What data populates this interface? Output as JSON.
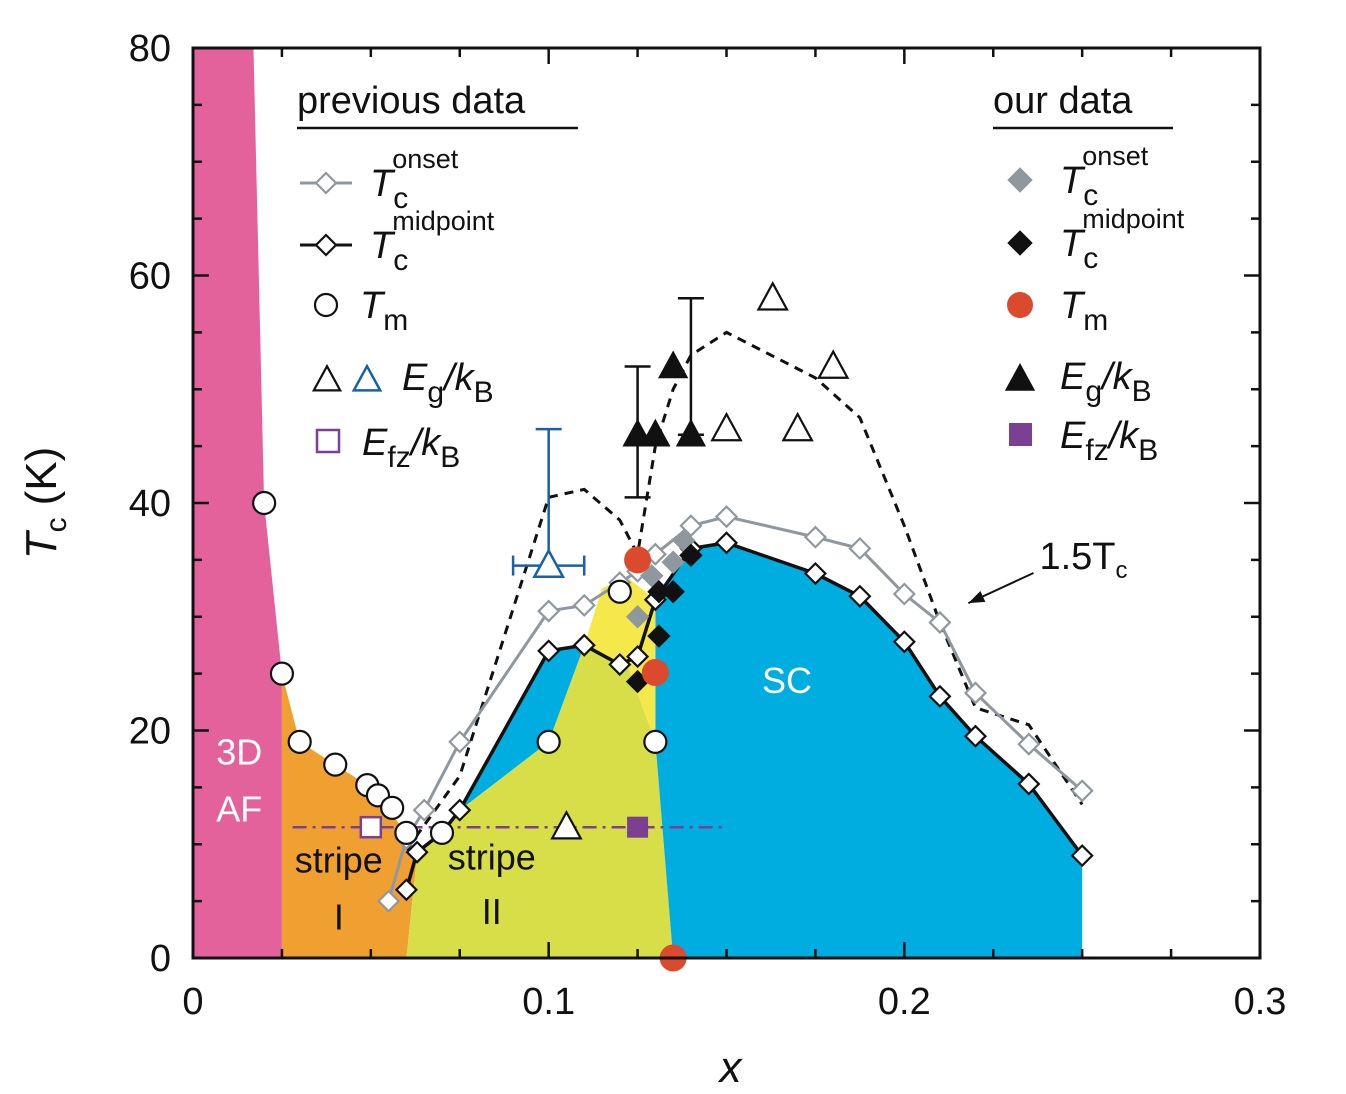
{
  "chart_data": {
    "type": "scatter",
    "xlabel": "x",
    "ylabel": "T",
    "ylabel_sub": "c",
    "ylabel_unit": "(K)",
    "xlim": [
      0,
      0.3
    ],
    "ylim": [
      0,
      80
    ],
    "xticks": [
      0,
      0.1,
      0.2,
      0.3
    ],
    "xtick_labels": [
      "0",
      "0.1",
      "0.2",
      "0.3"
    ],
    "yticks": [
      0,
      20,
      40,
      60,
      80
    ],
    "ytick_labels": [
      "0",
      "20",
      "40",
      "60",
      "80"
    ],
    "colors": {
      "af": "#e4629b",
      "stripe1": "#f0a030",
      "stripe2": "#d8de48",
      "stripe2b": "#f5e84a",
      "sc": "#00ade0",
      "onset_line": "#8f989e",
      "midpoint_line": "#111111",
      "tm_red": "#dc4a2e",
      "efz_purple": "#7b3f94",
      "eg_blue": "#1a60a8"
    },
    "regions": {
      "af": [
        [
          0,
          80
        ],
        [
          0.017,
          80
        ],
        [
          0.02,
          40
        ],
        [
          0.025,
          25
        ],
        [
          0.025,
          0
        ],
        [
          0,
          0
        ]
      ],
      "stripe1": [
        [
          0.025,
          25
        ],
        [
          0.03,
          19
        ],
        [
          0.04,
          17
        ],
        [
          0.05,
          15
        ],
        [
          0.055,
          13
        ],
        [
          0.06,
          11
        ],
        [
          0.063,
          9
        ],
        [
          0.06,
          0
        ],
        [
          0.025,
          0
        ]
      ],
      "stripe2": [
        [
          0.06,
          0
        ],
        [
          0.063,
          9
        ],
        [
          0.07,
          11
        ],
        [
          0.075,
          13
        ],
        [
          0.1,
          19
        ],
        [
          0.11,
          27.5
        ],
        [
          0.122,
          25.8
        ],
        [
          0.13,
          19
        ],
        [
          0.135,
          0
        ]
      ],
      "stripe2b": [
        [
          0.11,
          27.5
        ],
        [
          0.115,
          32.5
        ],
        [
          0.122,
          33.5
        ],
        [
          0.13,
          31.5
        ],
        [
          0.13,
          19
        ],
        [
          0.122,
          25.8
        ]
      ],
      "sc": [
        [
          0.075,
          13
        ],
        [
          0.1,
          27
        ],
        [
          0.11,
          27.5
        ],
        [
          0.122,
          25.8
        ],
        [
          0.13,
          19
        ],
        [
          0.13,
          31.5
        ],
        [
          0.14,
          36
        ],
        [
          0.15,
          36.5
        ],
        [
          0.175,
          33.8
        ],
        [
          0.1875,
          31.8
        ],
        [
          0.2,
          27.8
        ],
        [
          0.21,
          23
        ],
        [
          0.22,
          19.5
        ],
        [
          0.235,
          15.3
        ],
        [
          0.25,
          9
        ],
        [
          0.25,
          0
        ],
        [
          0.135,
          0
        ],
        [
          0.13,
          19
        ],
        [
          0.122,
          25.8
        ],
        [
          0.11,
          27.5
        ],
        [
          0.1,
          19
        ]
      ]
    },
    "region_labels": [
      {
        "text": "3D",
        "x": 0.013,
        "y": 17.0,
        "color": "#ffffff"
      },
      {
        "text": "AF",
        "x": 0.013,
        "y": 12.0,
        "color": "#ffffff"
      },
      {
        "text": "stripe",
        "x": 0.041,
        "y": 7.5,
        "color": "#111111"
      },
      {
        "text": "I",
        "x": 0.041,
        "y": 2.5,
        "color": "#111111"
      },
      {
        "text": "stripe",
        "x": 0.084,
        "y": 7.8,
        "color": "#111111"
      },
      {
        "text": "II",
        "x": 0.084,
        "y": 3.0,
        "color": "#111111"
      },
      {
        "text": "SC",
        "x": 0.167,
        "y": 23.3,
        "color": "#ffffff"
      }
    ],
    "series": [
      {
        "name": "previous Tc onset",
        "style": "open-diamond-gray-line",
        "x": [
          0.055,
          0.06,
          0.065,
          0.075,
          0.1,
          0.11,
          0.12,
          0.125,
          0.13,
          0.14,
          0.15,
          0.175,
          0.1875,
          0.2,
          0.21,
          0.22,
          0.235,
          0.25
        ],
        "y": [
          5,
          10.5,
          13,
          19,
          30.5,
          31,
          33,
          34,
          35.5,
          38,
          38.8,
          37,
          36,
          32,
          29.5,
          23.3,
          18.8,
          14.7
        ]
      },
      {
        "name": "previous Tc midpoint",
        "style": "open-diamond-black-line",
        "x": [
          0.06,
          0.063,
          0.07,
          0.075,
          0.1,
          0.11,
          0.12,
          0.125,
          0.13,
          0.14,
          0.15,
          0.175,
          0.1875,
          0.2,
          0.21,
          0.22,
          0.235,
          0.25
        ],
        "y": [
          6,
          9.3,
          11,
          13,
          27,
          27.5,
          25.8,
          26.5,
          31.5,
          36,
          36.5,
          33.8,
          31.8,
          27.8,
          23,
          19.5,
          15.3,
          9
        ]
      },
      {
        "name": "previous Tm",
        "style": "open-circle",
        "x": [
          0.02,
          0.025,
          0.03,
          0.04,
          0.049,
          0.052,
          0.056,
          0.06,
          0.07,
          0.1,
          0.12,
          0.13
        ],
        "y": [
          40,
          25,
          19,
          17,
          15.2,
          14.3,
          13.2,
          11,
          11,
          19,
          32.2,
          19
        ]
      },
      {
        "name": "previous Eg/kB",
        "style": "open-triangle",
        "x": [
          0.105,
          0.15,
          0.163,
          0.17,
          0.18
        ],
        "y": [
          11.5,
          46.5,
          58,
          46.5,
          52
        ]
      },
      {
        "name": "previous Eg/kB blue",
        "style": "open-triangle-blue",
        "x": [
          0.1
        ],
        "y": [
          34.5
        ],
        "xerr": [
          0.01
        ],
        "yerr_up": [
          12
        ]
      },
      {
        "name": "previous Efz/kB",
        "style": "open-square-purple",
        "x": [
          0.05
        ],
        "y": [
          11.5
        ]
      },
      {
        "name": "our Tc onset",
        "style": "filled-diamond-gray",
        "x": [
          0.125,
          0.129,
          0.135,
          0.138
        ],
        "y": [
          30,
          33.6,
          34.8,
          36.7
        ]
      },
      {
        "name": "our Tc midpoint",
        "style": "filled-diamond-black",
        "x": [
          0.125,
          0.131,
          0.131,
          0.135,
          0.14
        ],
        "y": [
          24.3,
          28.3,
          32.2,
          32.2,
          35.4
        ]
      },
      {
        "name": "our Tm",
        "style": "filled-circle-red",
        "x": [
          0.125,
          0.13,
          0.135
        ],
        "y": [
          35,
          25.1,
          0
        ]
      },
      {
        "name": "our Eg/kB",
        "style": "filled-triangle-black",
        "x": [
          0.125,
          0.13,
          0.135,
          0.14
        ],
        "y": [
          46,
          46,
          52,
          46
        ],
        "err_pairs": [
          [
            0.125,
            40.5,
            52
          ],
          [
            0.14,
            46,
            58
          ]
        ]
      },
      {
        "name": "our Efz/kB",
        "style": "filled-square-purple",
        "x": [
          0.125
        ],
        "y": [
          11.5
        ]
      },
      {
        "name": "1.5Tc",
        "style": "dashed-line",
        "x": [
          0.06,
          0.075,
          0.1,
          0.11,
          0.12,
          0.125,
          0.13,
          0.135,
          0.14,
          0.15,
          0.175,
          0.1875,
          0.2,
          0.21,
          0.22,
          0.235,
          0.25
        ],
        "y": [
          9.5,
          16,
          40.5,
          41.2,
          38.5,
          35.5,
          45,
          50,
          53,
          55,
          51,
          47.5,
          38,
          29.5,
          22,
          20.5,
          13.5
        ]
      }
    ],
    "efz_line": {
      "x": [
        0.028,
        0.15
      ],
      "y": 11.5
    },
    "annotation": {
      "text": "1.5T",
      "sub": "c",
      "x": 0.238,
      "y": 34.2,
      "arrow_to": [
        0.218,
        31.2
      ]
    },
    "legend_previous": {
      "heading": "previous data",
      "items": [
        {
          "sym": "T",
          "sub": "c",
          "sup": "onset"
        },
        {
          "sym": "T",
          "sub": "c",
          "sup": "midpoint"
        },
        {
          "sym": "T",
          "sub": "m",
          "sup": ""
        },
        {
          "sym": "E",
          "sub": "g",
          "tail": "/k",
          "tail_sub": "B"
        },
        {
          "sym": "E",
          "sub": "fz",
          "tail": "/k",
          "tail_sub": "B"
        }
      ]
    },
    "legend_ours": {
      "heading": "our data",
      "items": [
        {
          "sym": "T",
          "sub": "c",
          "sup": "onset"
        },
        {
          "sym": "T",
          "sub": "c",
          "sup": "midpoint"
        },
        {
          "sym": "T",
          "sub": "m",
          "sup": ""
        },
        {
          "sym": "E",
          "sub": "g",
          "tail": "/k",
          "tail_sub": "B"
        },
        {
          "sym": "E",
          "sub": "fz",
          "tail": "/k",
          "tail_sub": "B"
        }
      ]
    }
  }
}
